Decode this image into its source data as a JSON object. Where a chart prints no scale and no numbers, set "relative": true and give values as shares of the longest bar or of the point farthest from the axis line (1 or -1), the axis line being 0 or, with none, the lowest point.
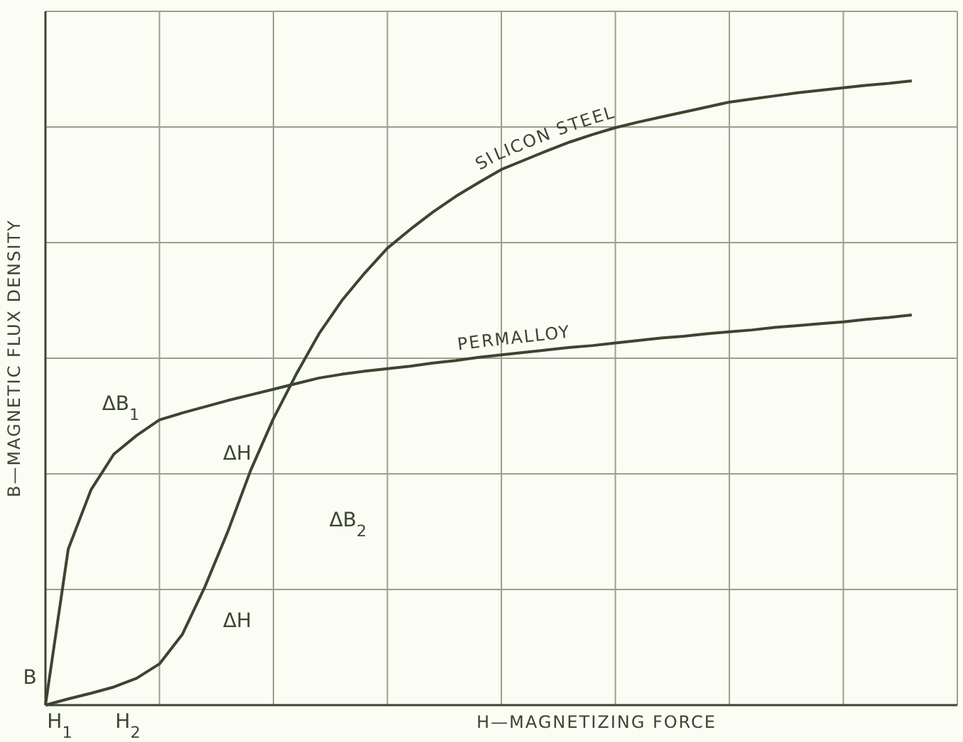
{
  "chart_data": {
    "type": "line",
    "relative": true,
    "xlabel": "H—MAGNETIZING FORCE",
    "ylabel": "B—MAGNETIC FLUX DENSITY",
    "grid": true,
    "marker": "none",
    "line_style": "solid",
    "categories": [
      null,
      null,
      null,
      null,
      null,
      null,
      null,
      null,
      null,
      null,
      null,
      null,
      null,
      null,
      null,
      null,
      null,
      null,
      null,
      null,
      null,
      null,
      null,
      null,
      null,
      null,
      null,
      null,
      null,
      null,
      null,
      null,
      null,
      null,
      null,
      null,
      null,
      null,
      null
    ],
    "series": [
      {
        "name": "SILICON STEEL",
        "color": "#3b4530",
        "values": [
          0,
          0.01,
          0.019,
          0.029,
          0.043,
          0.066,
          0.113,
          0.19,
          0.278,
          0.376,
          0.459,
          0.53,
          0.595,
          0.648,
          0.692,
          0.732,
          0.762,
          0.79,
          0.815,
          0.837,
          0.858,
          0.873,
          0.888,
          0.902,
          0.914,
          0.925,
          0.934,
          0.942,
          0.95,
          0.958,
          0.966,
          0.971,
          0.976,
          0.981,
          0.985,
          0.989,
          0.993,
          0.996,
          1.0
        ]
      },
      {
        "name": "PERMALLOY",
        "color": "#3b4530",
        "values": [
          0,
          0.25,
          0.345,
          0.402,
          0.432,
          0.457,
          0.468,
          0.478,
          0.488,
          0.497,
          0.506,
          0.515,
          0.524,
          0.53,
          0.535,
          0.539,
          0.543,
          0.548,
          0.552,
          0.557,
          0.561,
          0.565,
          0.569,
          0.573,
          0.576,
          0.58,
          0.584,
          0.588,
          0.591,
          0.595,
          0.598,
          0.601,
          0.605,
          0.608,
          0.611,
          0.614,
          0.618,
          0.621,
          0.625
        ]
      }
    ],
    "annotations": [
      "ΔB$_{1}$",
      "ΔH",
      "ΔB$_{2}$",
      "ΔH",
      "B",
      "H$_{1}$",
      "H$_{2}$"
    ]
  }
}
